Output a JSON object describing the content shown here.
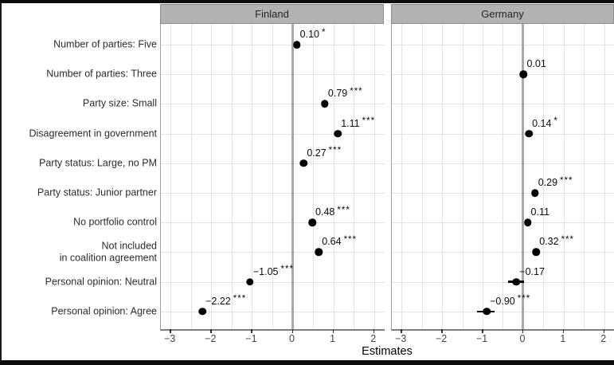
{
  "chart_data": {
    "type": "scatter",
    "subtype": "faceted coefficient dot plot",
    "xlabel": "Estimates",
    "x_tick_values": [
      -3,
      -2,
      -1,
      0,
      1,
      2
    ],
    "x_tick_labels": [
      "−3",
      "−2",
      "−1",
      "0",
      "1",
      "2"
    ],
    "xlim": [
      -3.24,
      2.26
    ],
    "grid": "on",
    "zero_reference_line": 0,
    "legend_position": "none",
    "categories": [
      "Number of parties: Five",
      "Number of parties: Three",
      "Party size: Small",
      "Disagreement in government",
      "Party status: Large, no PM",
      "Party status: Junior partner",
      "No portfolio control",
      "Not included\nin coalition agreement",
      "Personal opinion: Neutral",
      "Personal opinion: Agree"
    ],
    "facets": [
      {
        "label": "Finland",
        "points": [
          {
            "category": "Number of parties: Five",
            "estimate": 0.1,
            "label": "0.10",
            "stars": "*",
            "ci": null
          },
          {
            "category": "Party size: Small",
            "estimate": 0.79,
            "label": "0.79",
            "stars": "***",
            "ci": null
          },
          {
            "category": "Disagreement in government",
            "estimate": 1.11,
            "label": "1.11",
            "stars": "***",
            "ci": null
          },
          {
            "category": "Party status: Large, no PM",
            "estimate": 0.27,
            "label": "0.27",
            "stars": "***",
            "ci": null
          },
          {
            "category": "No portfolio control",
            "estimate": 0.48,
            "label": "0.48",
            "stars": "***",
            "ci": null
          },
          {
            "category": "Not included\nin coalition agreement",
            "estimate": 0.64,
            "label": "0.64",
            "stars": "***",
            "ci": null
          },
          {
            "category": "Personal opinion: Neutral",
            "estimate": -1.05,
            "label": "−1.05",
            "stars": "***",
            "ci": null
          },
          {
            "category": "Personal opinion: Agree",
            "estimate": -2.22,
            "label": "−2.22",
            "stars": "***",
            "ci": null
          }
        ]
      },
      {
        "label": "Germany",
        "points": [
          {
            "category": "Number of parties: Three",
            "estimate": 0.01,
            "label": "0.01",
            "stars": "",
            "ci": null
          },
          {
            "category": "Disagreement in government",
            "estimate": 0.14,
            "label": "0.14",
            "stars": "*",
            "ci": null
          },
          {
            "category": "Party status: Junior partner",
            "estimate": 0.29,
            "label": "0.29",
            "stars": "***",
            "ci": null
          },
          {
            "category": "No portfolio control",
            "estimate": 0.11,
            "label": "0.11",
            "stars": "",
            "ci": null
          },
          {
            "category": "Not included\nin coalition agreement",
            "estimate": 0.32,
            "label": "0.32",
            "stars": "***",
            "ci": null
          },
          {
            "category": "Personal opinion: Neutral",
            "estimate": -0.17,
            "label": "−0.17",
            "stars": "",
            "ci": [
              -0.37,
              0.02
            ]
          },
          {
            "category": "Personal opinion: Agree",
            "estimate": -0.9,
            "label": "−0.90",
            "stars": "***",
            "ci": [
              -1.13,
              -0.71
            ]
          }
        ]
      }
    ]
  },
  "colors": {
    "strip_bg": "#b2b2b2",
    "strip_border": "#8c8c8c",
    "strip_text": "#262626",
    "gridline": "#e3e3e3",
    "zero_line": "#a8a8a8",
    "axis_line": "#7d7d7d",
    "point": "#000000",
    "value_text": "#0a0a0a",
    "axis_text": "#454545",
    "category_text": "#2b2b2b",
    "crop_bar": "#0d0d0d"
  }
}
